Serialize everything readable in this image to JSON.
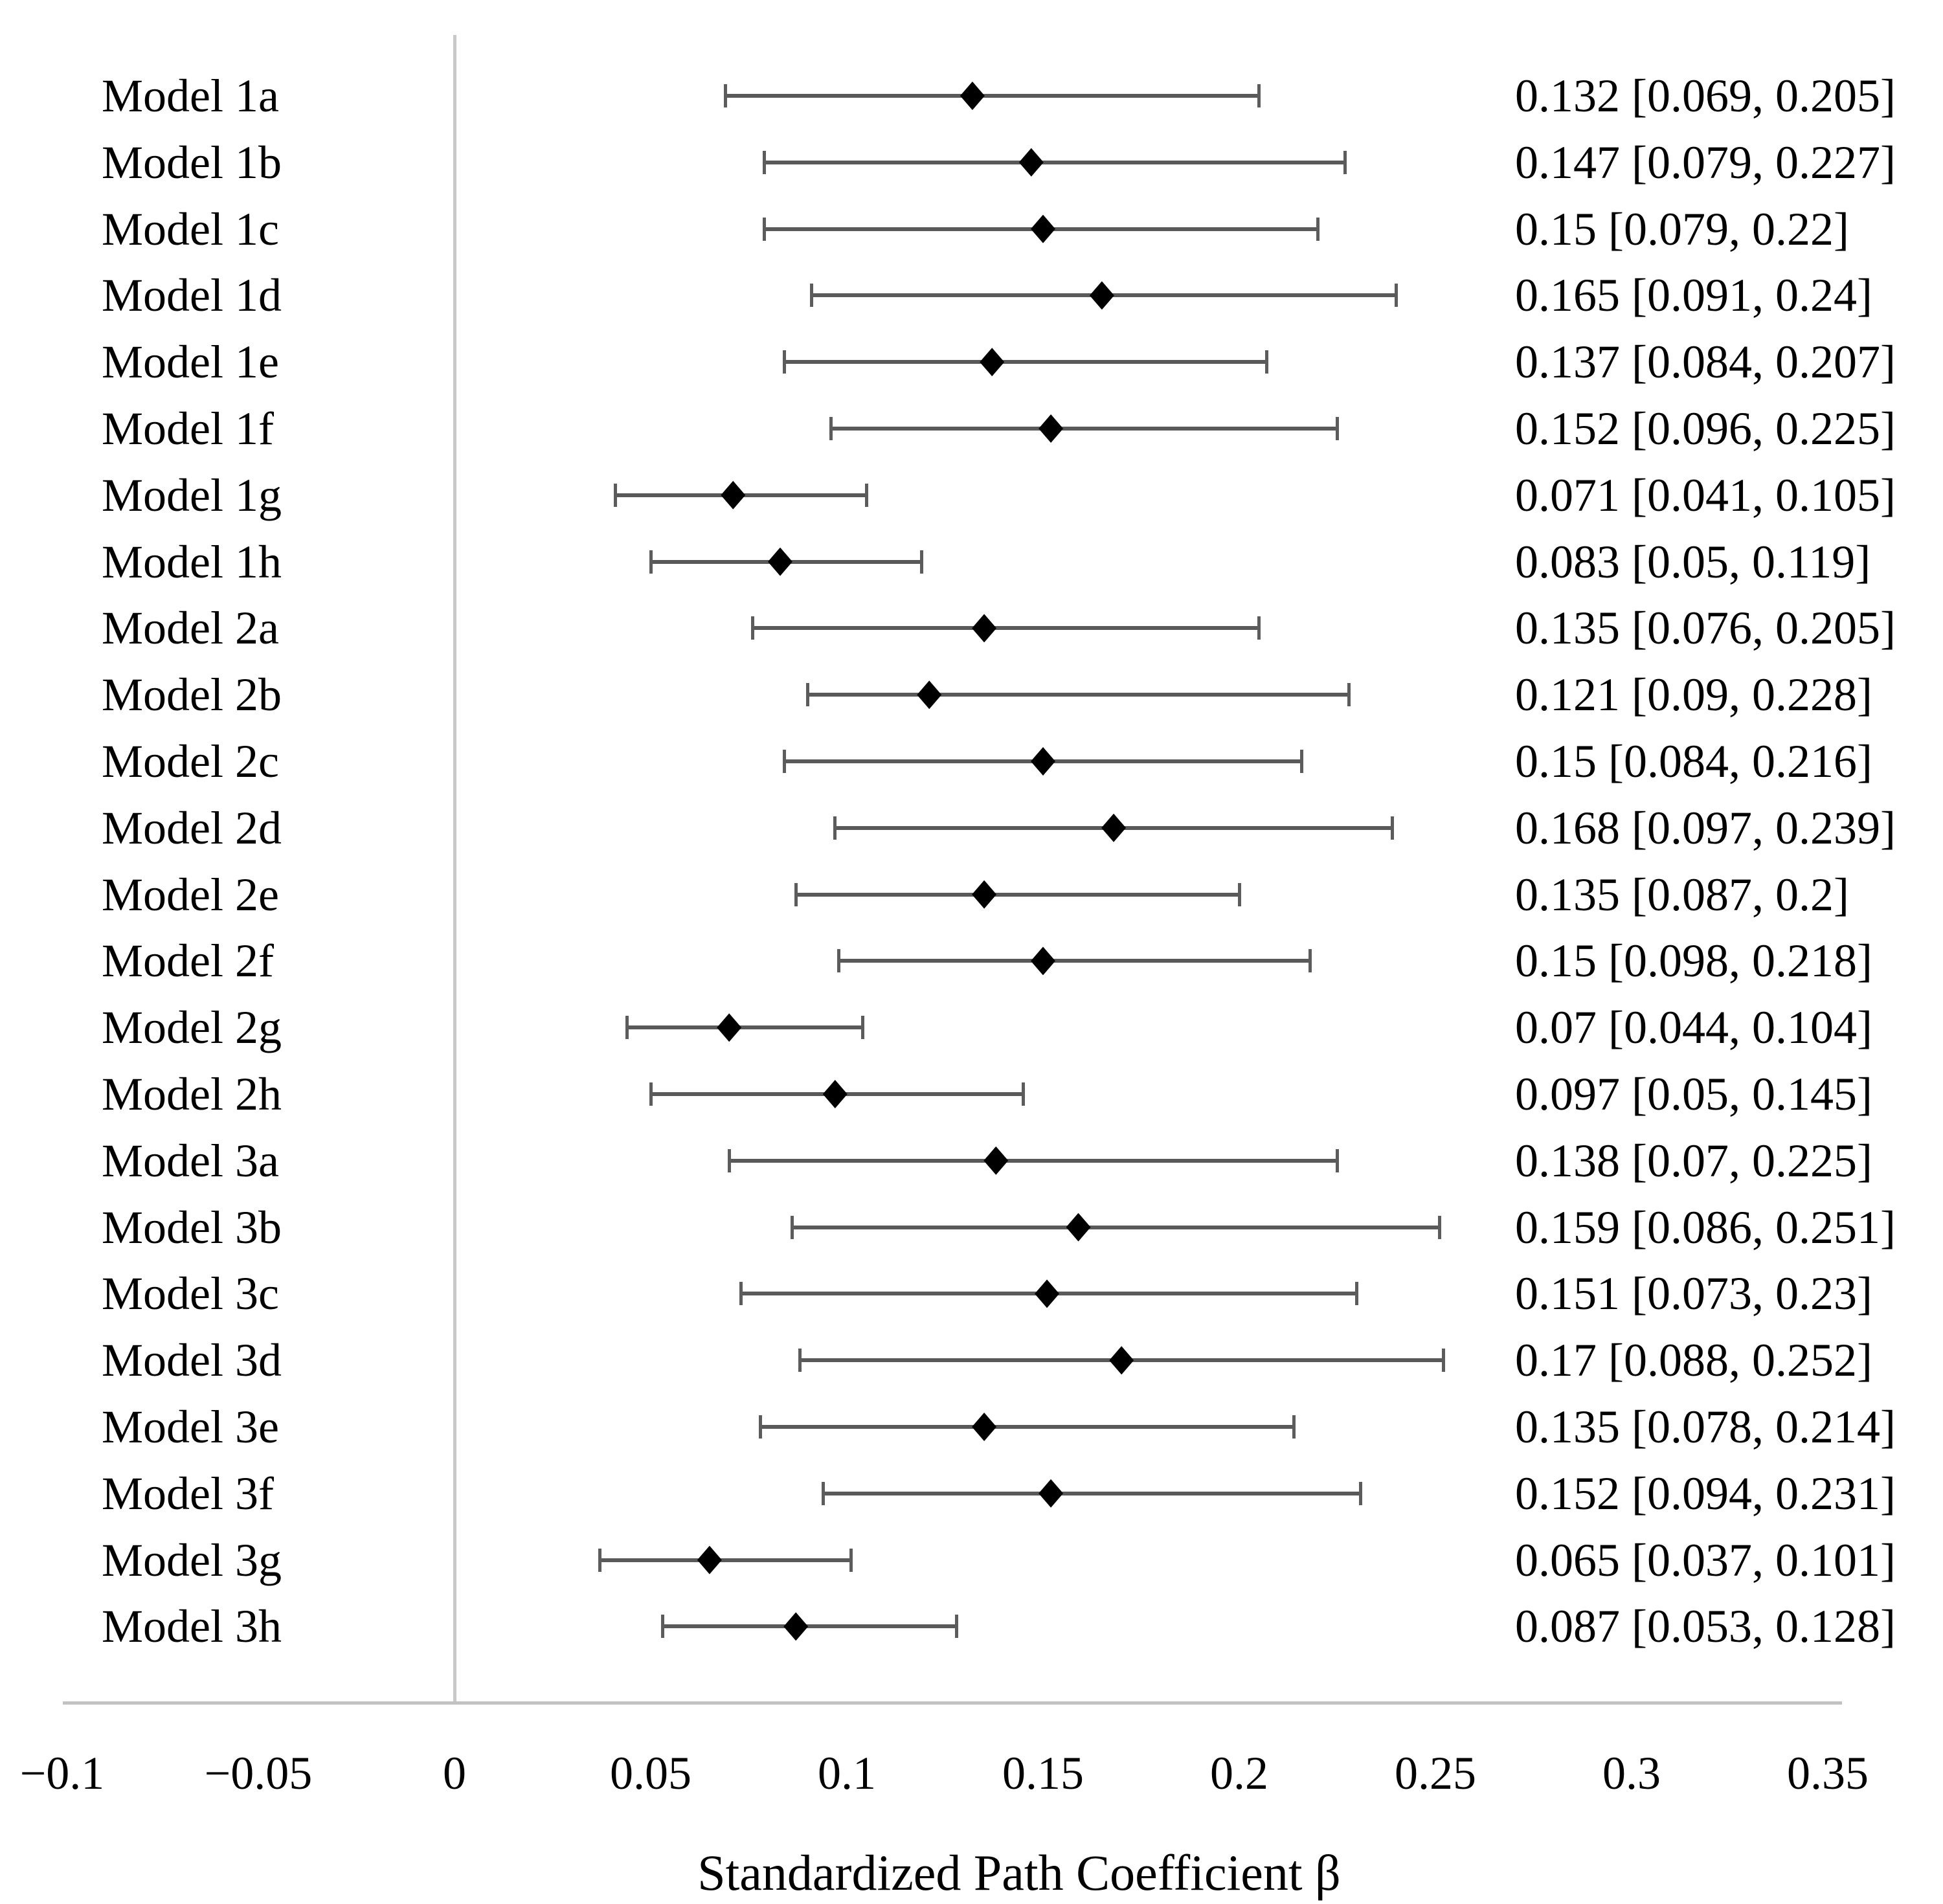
{
  "chart_data": {
    "type": "scatter",
    "variant": "forest-plot",
    "title": "",
    "xlabel": "Standardized Path Coefficient β",
    "ylabel": "",
    "xlim": [
      -0.1,
      0.35
    ],
    "grid": false,
    "legend": "none",
    "x_ticks": [
      {
        "value": -0.1,
        "label": "−0.1"
      },
      {
        "value": -0.05,
        "label": "−0.05"
      },
      {
        "value": 0,
        "label": "0"
      },
      {
        "value": 0.05,
        "label": "0.05"
      },
      {
        "value": 0.1,
        "label": "0.1"
      },
      {
        "value": 0.15,
        "label": "0.15"
      },
      {
        "value": 0.2,
        "label": "0.2"
      },
      {
        "value": 0.25,
        "label": "0.25"
      },
      {
        "value": 0.3,
        "label": "0.3"
      },
      {
        "value": 0.35,
        "label": "0.35"
      }
    ],
    "models": [
      {
        "label": "Model 1a",
        "estimate": 0.132,
        "ci_lower": 0.069,
        "ci_upper": 0.205,
        "value_text": "0.132 [0.069, 0.205]"
      },
      {
        "label": "Model 1b",
        "estimate": 0.147,
        "ci_lower": 0.079,
        "ci_upper": 0.227,
        "value_text": "0.147 [0.079, 0.227]"
      },
      {
        "label": "Model 1c",
        "estimate": 0.15,
        "ci_lower": 0.079,
        "ci_upper": 0.22,
        "value_text": "0.15 [0.079, 0.22]"
      },
      {
        "label": "Model 1d",
        "estimate": 0.165,
        "ci_lower": 0.091,
        "ci_upper": 0.24,
        "value_text": "0.165 [0.091, 0.24]"
      },
      {
        "label": "Model 1e",
        "estimate": 0.137,
        "ci_lower": 0.084,
        "ci_upper": 0.207,
        "value_text": "0.137 [0.084, 0.207]"
      },
      {
        "label": "Model 1f",
        "estimate": 0.152,
        "ci_lower": 0.096,
        "ci_upper": 0.225,
        "value_text": "0.152 [0.096, 0.225]"
      },
      {
        "label": "Model 1g",
        "estimate": 0.071,
        "ci_lower": 0.041,
        "ci_upper": 0.105,
        "value_text": "0.071 [0.041, 0.105]"
      },
      {
        "label": "Model 1h",
        "estimate": 0.083,
        "ci_lower": 0.05,
        "ci_upper": 0.119,
        "value_text": "0.083 [0.05, 0.119]"
      },
      {
        "label": "Model 2a",
        "estimate": 0.135,
        "ci_lower": 0.076,
        "ci_upper": 0.205,
        "value_text": "0.135 [0.076, 0.205]"
      },
      {
        "label": "Model 2b",
        "estimate": 0.121,
        "ci_lower": 0.09,
        "ci_upper": 0.228,
        "value_text": "0.121 [0.09, 0.228]"
      },
      {
        "label": "Model 2c",
        "estimate": 0.15,
        "ci_lower": 0.084,
        "ci_upper": 0.216,
        "value_text": "0.15 [0.084, 0.216]"
      },
      {
        "label": "Model 2d",
        "estimate": 0.168,
        "ci_lower": 0.097,
        "ci_upper": 0.239,
        "value_text": "0.168 [0.097, 0.239]"
      },
      {
        "label": "Model 2e",
        "estimate": 0.135,
        "ci_lower": 0.087,
        "ci_upper": 0.2,
        "value_text": "0.135 [0.087, 0.2]"
      },
      {
        "label": "Model 2f",
        "estimate": 0.15,
        "ci_lower": 0.098,
        "ci_upper": 0.218,
        "value_text": "0.15 [0.098, 0.218]"
      },
      {
        "label": "Model 2g",
        "estimate": 0.07,
        "ci_lower": 0.044,
        "ci_upper": 0.104,
        "value_text": "0.07 [0.044, 0.104]"
      },
      {
        "label": "Model 2h",
        "estimate": 0.097,
        "ci_lower": 0.05,
        "ci_upper": 0.145,
        "value_text": "0.097 [0.05, 0.145]"
      },
      {
        "label": "Model 3a",
        "estimate": 0.138,
        "ci_lower": 0.07,
        "ci_upper": 0.225,
        "value_text": "0.138 [0.07, 0.225]"
      },
      {
        "label": "Model 3b",
        "estimate": 0.159,
        "ci_lower": 0.086,
        "ci_upper": 0.251,
        "value_text": "0.159 [0.086, 0.251]"
      },
      {
        "label": "Model 3c",
        "estimate": 0.151,
        "ci_lower": 0.073,
        "ci_upper": 0.23,
        "value_text": "0.151 [0.073, 0.23]"
      },
      {
        "label": "Model 3d",
        "estimate": 0.17,
        "ci_lower": 0.088,
        "ci_upper": 0.252,
        "value_text": "0.17 [0.088, 0.252]"
      },
      {
        "label": "Model 3e",
        "estimate": 0.135,
        "ci_lower": 0.078,
        "ci_upper": 0.214,
        "value_text": "0.135 [0.078, 0.214]"
      },
      {
        "label": "Model 3f",
        "estimate": 0.152,
        "ci_lower": 0.094,
        "ci_upper": 0.231,
        "value_text": "0.152 [0.094, 0.231]"
      },
      {
        "label": "Model 3g",
        "estimate": 0.065,
        "ci_lower": 0.037,
        "ci_upper": 0.101,
        "value_text": "0.065 [0.037, 0.101]"
      },
      {
        "label": "Model 3h",
        "estimate": 0.087,
        "ci_lower": 0.053,
        "ci_upper": 0.128,
        "value_text": "0.087 [0.053, 0.128]"
      }
    ],
    "colors": {
      "marker": "#000000",
      "ci_line": "#595959",
      "ci_cap": "#5c5c5c",
      "axis_line": "#c9c9c9",
      "text": "#000000"
    }
  }
}
